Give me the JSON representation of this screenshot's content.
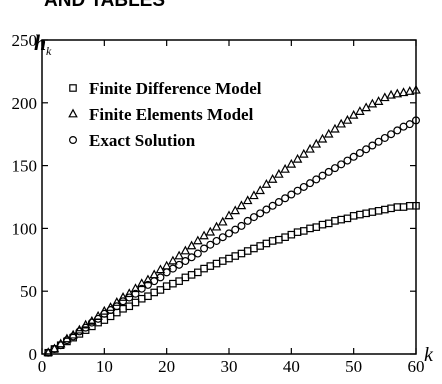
{
  "header_fragment": "AND TABLES",
  "chart_data": {
    "type": "scatter",
    "title": "",
    "xlabel": "k",
    "ylabel": "h",
    "ylabel_subscript": "k",
    "xlim": [
      0,
      60
    ],
    "ylim": [
      0,
      250
    ],
    "xticks": [
      0,
      10,
      20,
      30,
      40,
      50,
      60
    ],
    "yticks": [
      0,
      50,
      100,
      150,
      200,
      250
    ],
    "grid": false,
    "legend_position": "top-left",
    "series": [
      {
        "name": "Finite Difference Model",
        "marker": "square",
        "x": [
          1,
          2,
          3,
          4,
          5,
          6,
          7,
          8,
          9,
          10,
          11,
          12,
          13,
          14,
          15,
          16,
          17,
          18,
          19,
          20,
          21,
          22,
          23,
          24,
          25,
          26,
          27,
          28,
          29,
          30,
          31,
          32,
          33,
          34,
          35,
          36,
          37,
          38,
          39,
          40,
          41,
          42,
          43,
          44,
          45,
          46,
          47,
          48,
          49,
          50,
          51,
          52,
          53,
          54,
          55,
          56,
          57,
          58,
          59,
          60
        ],
        "y": [
          1,
          4,
          7,
          10,
          13,
          16,
          19,
          22,
          25,
          27,
          30,
          33,
          36,
          38,
          41,
          44,
          46,
          49,
          51,
          54,
          56,
          58,
          61,
          63,
          65,
          68,
          70,
          72,
          74,
          76,
          78,
          80,
          82,
          84,
          86,
          88,
          90,
          91,
          93,
          95,
          97,
          98,
          100,
          101,
          103,
          104,
          106,
          107,
          108,
          110,
          111,
          112,
          113,
          114,
          115,
          116,
          117,
          117,
          118,
          118
        ]
      },
      {
        "name": "Finite Elements Model",
        "marker": "triangle",
        "x": [
          1,
          2,
          3,
          4,
          5,
          6,
          7,
          8,
          9,
          10,
          11,
          12,
          13,
          14,
          15,
          16,
          17,
          18,
          19,
          20,
          21,
          22,
          23,
          24,
          25,
          26,
          27,
          28,
          29,
          30,
          31,
          32,
          33,
          34,
          35,
          36,
          37,
          38,
          39,
          40,
          41,
          42,
          43,
          44,
          45,
          46,
          47,
          48,
          49,
          50,
          51,
          52,
          53,
          54,
          55,
          56,
          57,
          58,
          59,
          60
        ],
        "y": [
          1,
          4,
          8,
          12,
          15,
          19,
          23,
          26,
          30,
          34,
          37,
          41,
          45,
          48,
          52,
          56,
          59,
          63,
          67,
          70,
          74,
          78,
          82,
          86,
          90,
          94,
          97,
          101,
          105,
          110,
          114,
          118,
          122,
          126,
          130,
          135,
          139,
          143,
          147,
          151,
          155,
          159,
          163,
          167,
          171,
          175,
          179,
          183,
          186,
          190,
          193,
          196,
          199,
          201,
          204,
          206,
          207,
          208,
          209,
          210
        ]
      },
      {
        "name": "Exact Solution",
        "marker": "circle",
        "x": [
          1,
          2,
          3,
          4,
          5,
          6,
          7,
          8,
          9,
          10,
          11,
          12,
          13,
          14,
          15,
          16,
          17,
          18,
          19,
          20,
          21,
          22,
          23,
          24,
          25,
          26,
          27,
          28,
          29,
          30,
          31,
          32,
          33,
          34,
          35,
          36,
          37,
          38,
          39,
          40,
          41,
          42,
          43,
          44,
          45,
          46,
          47,
          48,
          49,
          50,
          51,
          52,
          53,
          54,
          55,
          56,
          57,
          58,
          59,
          60
        ],
        "y": [
          1,
          4,
          7,
          11,
          14,
          18,
          21,
          25,
          28,
          32,
          35,
          38,
          42,
          45,
          48,
          52,
          55,
          58,
          61,
          65,
          68,
          71,
          74,
          77,
          80,
          84,
          87,
          90,
          93,
          96,
          99,
          102,
          106,
          109,
          112,
          115,
          118,
          121,
          124,
          127,
          130,
          133,
          136,
          139,
          142,
          145,
          148,
          151,
          154,
          157,
          160,
          163,
          166,
          169,
          172,
          175,
          178,
          181,
          183,
          186
        ]
      }
    ]
  }
}
